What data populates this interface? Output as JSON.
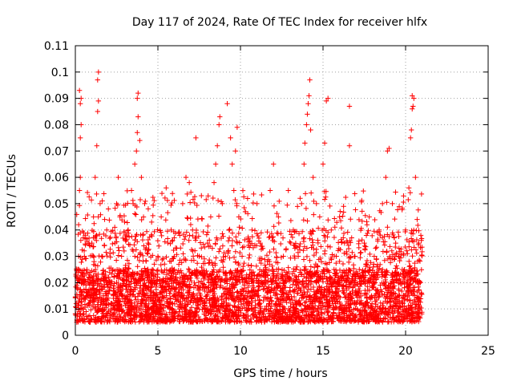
{
  "chart_data": {
    "type": "scatter",
    "title": "Day 117 of 2024, Rate Of TEC Index for receiver hlfx",
    "xlabel": "GPS time / hours",
    "ylabel": "ROTI / TECUs",
    "xlim": [
      0,
      25
    ],
    "ylim": [
      0,
      0.11
    ],
    "xticks": [
      0,
      5,
      10,
      15,
      20,
      25
    ],
    "xtick_labels": [
      "0",
      "5",
      "10",
      "15",
      "20",
      "25"
    ],
    "yticks": [
      0,
      0.01,
      0.02,
      0.03,
      0.04,
      0.05,
      0.06,
      0.07,
      0.08,
      0.09,
      0.1,
      0.11
    ],
    "ytick_labels": [
      "0",
      "0.01",
      "0.02",
      "0.03",
      "0.04",
      "0.05",
      "0.06",
      "0.07",
      "0.08",
      "0.09",
      "0.1",
      "0.11"
    ],
    "grid": true,
    "marker": "+",
    "series": [
      {
        "name": "ROTI",
        "color": "#ff0000",
        "points": [
          [
            0.05,
            0.012
          ],
          [
            0.1,
            0.018
          ],
          [
            0.15,
            0.025
          ],
          [
            0.2,
            0.03
          ],
          [
            0.2,
            0.042
          ],
          [
            0.25,
            0.055
          ],
          [
            0.3,
            0.06
          ],
          [
            0.3,
            0.075
          ],
          [
            0.35,
            0.08
          ],
          [
            0.3,
            0.088
          ],
          [
            0.35,
            0.09
          ],
          [
            0.25,
            0.093
          ],
          [
            0.4,
            0.02
          ],
          [
            0.45,
            0.01
          ],
          [
            0.5,
            0.015
          ],
          [
            0.55,
            0.03
          ],
          [
            0.6,
            0.038
          ],
          [
            0.7,
            0.025
          ],
          [
            0.8,
            0.012
          ],
          [
            0.9,
            0.02
          ],
          [
            1.0,
            0.035
          ],
          [
            1.1,
            0.045
          ],
          [
            1.2,
            0.06
          ],
          [
            1.3,
            0.072
          ],
          [
            1.35,
            0.085
          ],
          [
            1.4,
            0.089
          ],
          [
            1.35,
            0.097
          ],
          [
            1.4,
            0.1
          ],
          [
            1.5,
            0.05
          ],
          [
            1.6,
            0.03
          ],
          [
            1.7,
            0.015
          ],
          [
            1.8,
            0.022
          ],
          [
            1.9,
            0.04
          ],
          [
            2.0,
            0.048
          ],
          [
            2.1,
            0.02
          ],
          [
            2.2,
            0.012
          ],
          [
            2.4,
            0.035
          ],
          [
            2.5,
            0.05
          ],
          [
            2.6,
            0.06
          ],
          [
            2.7,
            0.045
          ],
          [
            2.8,
            0.03
          ],
          [
            3.0,
            0.015
          ],
          [
            3.1,
            0.025
          ],
          [
            3.2,
            0.04
          ],
          [
            3.4,
            0.055
          ],
          [
            3.5,
            0.05
          ],
          [
            3.6,
            0.065
          ],
          [
            3.7,
            0.07
          ],
          [
            3.75,
            0.077
          ],
          [
            3.8,
            0.083
          ],
          [
            3.75,
            0.09
          ],
          [
            3.8,
            0.092
          ],
          [
            3.9,
            0.074
          ],
          [
            4.0,
            0.06
          ],
          [
            4.2,
            0.05
          ],
          [
            4.4,
            0.035
          ],
          [
            4.6,
            0.02
          ],
          [
            4.8,
            0.012
          ],
          [
            5.0,
            0.03
          ],
          [
            5.2,
            0.045
          ],
          [
            5.5,
            0.056
          ],
          [
            5.8,
            0.04
          ],
          [
            6.0,
            0.025
          ],
          [
            6.2,
            0.015
          ],
          [
            6.5,
            0.05
          ],
          [
            6.7,
            0.06
          ],
          [
            6.9,
            0.058
          ],
          [
            7.1,
            0.04
          ],
          [
            7.3,
            0.075
          ],
          [
            7.5,
            0.03
          ],
          [
            7.7,
            0.018
          ],
          [
            8.0,
            0.035
          ],
          [
            8.2,
            0.045
          ],
          [
            8.4,
            0.058
          ],
          [
            8.5,
            0.065
          ],
          [
            8.6,
            0.072
          ],
          [
            8.7,
            0.08
          ],
          [
            8.75,
            0.083
          ],
          [
            8.9,
            0.05
          ],
          [
            9.1,
            0.03
          ],
          [
            9.2,
            0.088
          ],
          [
            9.4,
            0.075
          ],
          [
            9.5,
            0.065
          ],
          [
            9.6,
            0.055
          ],
          [
            9.7,
            0.07
          ],
          [
            9.8,
            0.079
          ],
          [
            9.9,
            0.045
          ],
          [
            10.1,
            0.03
          ],
          [
            10.4,
            0.02
          ],
          [
            10.7,
            0.04
          ],
          [
            11.0,
            0.05
          ],
          [
            11.2,
            0.035
          ],
          [
            11.5,
            0.025
          ],
          [
            11.8,
            0.055
          ],
          [
            12.0,
            0.065
          ],
          [
            12.3,
            0.045
          ],
          [
            12.6,
            0.03
          ],
          [
            12.9,
            0.055
          ],
          [
            13.2,
            0.04
          ],
          [
            13.5,
            0.03
          ],
          [
            13.7,
            0.05
          ],
          [
            13.85,
            0.065
          ],
          [
            13.9,
            0.073
          ],
          [
            14.0,
            0.08
          ],
          [
            14.05,
            0.084
          ],
          [
            14.1,
            0.088
          ],
          [
            14.15,
            0.091
          ],
          [
            14.2,
            0.097
          ],
          [
            14.25,
            0.078
          ],
          [
            14.4,
            0.06
          ],
          [
            14.6,
            0.05
          ],
          [
            14.8,
            0.045
          ],
          [
            15.0,
            0.065
          ],
          [
            15.1,
            0.073
          ],
          [
            15.2,
            0.089
          ],
          [
            15.3,
            0.09
          ],
          [
            15.5,
            0.04
          ],
          [
            15.8,
            0.03
          ],
          [
            16.0,
            0.045
          ],
          [
            16.3,
            0.035
          ],
          [
            16.6,
            0.087
          ],
          [
            16.6,
            0.072
          ],
          [
            16.9,
            0.03
          ],
          [
            17.2,
            0.025
          ],
          [
            17.5,
            0.035
          ],
          [
            17.8,
            0.045
          ],
          [
            18.1,
            0.03
          ],
          [
            18.4,
            0.04
          ],
          [
            18.6,
            0.05
          ],
          [
            18.8,
            0.06
          ],
          [
            18.9,
            0.07
          ],
          [
            19.0,
            0.071
          ],
          [
            19.2,
            0.05
          ],
          [
            19.4,
            0.035
          ],
          [
            19.6,
            0.03
          ],
          [
            19.8,
            0.025
          ],
          [
            20.0,
            0.04
          ],
          [
            20.2,
            0.056
          ],
          [
            20.3,
            0.075
          ],
          [
            20.35,
            0.078
          ],
          [
            20.4,
            0.086
          ],
          [
            20.45,
            0.087
          ],
          [
            20.4,
            0.091
          ],
          [
            20.5,
            0.09
          ],
          [
            20.6,
            0.06
          ],
          [
            20.7,
            0.044
          ],
          [
            20.8,
            0.035
          ],
          [
            20.9,
            0.02
          ]
        ],
        "dense_band": {
          "x_range": [
            0,
            21
          ],
          "typical_range": [
            0.005,
            0.025
          ],
          "description": "dense cloud of thousands of points"
        }
      }
    ]
  }
}
